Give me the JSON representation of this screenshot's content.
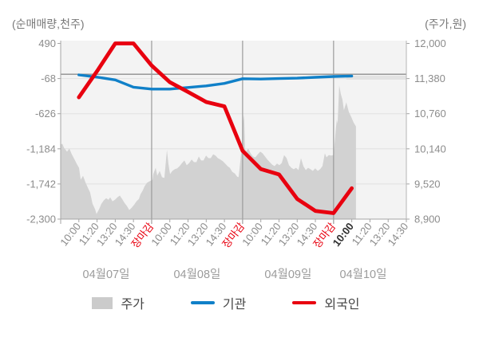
{
  "axes": {
    "left_title": "(순매매량,천주)",
    "right_title": "(주가,원)"
  },
  "legend": [
    {
      "label": "주가",
      "type": "area",
      "color": "#cbcbcb"
    },
    {
      "label": "기관",
      "type": "line",
      "color": "#1080c8"
    },
    {
      "label": "외국인",
      "type": "line",
      "color": "#e8000f"
    }
  ],
  "chart_data": {
    "type": "mixed",
    "title": "",
    "left_axis": {
      "title": "(순매매량,천주)",
      "ticks": [
        490,
        -68,
        -626,
        -1184,
        -1742,
        -2300
      ],
      "labels": [
        "490",
        "-68",
        "-626",
        "-1,184",
        "-1,742",
        "-2,300"
      ],
      "range": [
        -2300,
        490
      ]
    },
    "right_axis": {
      "title": "(주가,원)",
      "ticks": [
        12000,
        11380,
        10760,
        10140,
        9520,
        8900
      ],
      "labels": [
        "12,000",
        "11,380",
        "10,760",
        "10,140",
        "9,520",
        "8,900"
      ],
      "range": [
        8900,
        12000
      ]
    },
    "x_axis": {
      "ticks": [
        {
          "label": "10:00",
          "style": "normal"
        },
        {
          "label": "11:20",
          "style": "normal"
        },
        {
          "label": "13:20",
          "style": "normal"
        },
        {
          "label": "14:30",
          "style": "normal"
        },
        {
          "label": "장마감",
          "style": "close"
        },
        {
          "label": "10:00",
          "style": "normal"
        },
        {
          "label": "11:20",
          "style": "normal"
        },
        {
          "label": "13:20",
          "style": "normal"
        },
        {
          "label": "14:30",
          "style": "normal"
        },
        {
          "label": "장마감",
          "style": "close"
        },
        {
          "label": "10:00",
          "style": "normal"
        },
        {
          "label": "11:20",
          "style": "normal"
        },
        {
          "label": "13:20",
          "style": "normal"
        },
        {
          "label": "14:30",
          "style": "normal"
        },
        {
          "label": "장마감",
          "style": "close"
        },
        {
          "label": "10:00",
          "style": "current"
        },
        {
          "label": "11:20",
          "style": "normal"
        },
        {
          "label": "13:20",
          "style": "normal"
        },
        {
          "label": "14:30",
          "style": "normal"
        }
      ],
      "dates": [
        "04월07일",
        "04월08일",
        "04월09일",
        "04월10일"
      ]
    },
    "colors": {
      "close_label": "#e8000f",
      "current_label": "#2f2f2f",
      "tick_label": "#8c8c8c",
      "date_label": "#9b9b9b",
      "grid": "#e2e2e2",
      "day_separator": "#9b9b9b",
      "zero_line": "#8e8e8e",
      "plot_bg": "#f3f3f3"
    },
    "reference_line": {
      "axis": "left",
      "value": 0
    },
    "last_price_line": {
      "axis": "right",
      "value": 11395
    },
    "series": [
      {
        "id": "price-area",
        "name": "주가",
        "type": "area",
        "axis": "right",
        "color": "#d2d2d2",
        "points": [
          [
            0,
            10215
          ],
          [
            0.09,
            10230
          ],
          [
            0.18,
            10160
          ],
          [
            0.35,
            10090
          ],
          [
            0.48,
            10145
          ],
          [
            0.61,
            10045
          ],
          [
            0.75,
            9960
          ],
          [
            0.88,
            9875
          ],
          [
            1.01,
            9805
          ],
          [
            1.1,
            9595
          ],
          [
            1.23,
            9665
          ],
          [
            1.36,
            9550
          ],
          [
            1.49,
            9455
          ],
          [
            1.62,
            9370
          ],
          [
            1.75,
            9170
          ],
          [
            1.89,
            9075
          ],
          [
            1.97,
            8990
          ],
          [
            2.11,
            9075
          ],
          [
            2.24,
            9170
          ],
          [
            2.37,
            9230
          ],
          [
            2.5,
            9270
          ],
          [
            2.63,
            9240
          ],
          [
            2.72,
            9285
          ],
          [
            2.85,
            9215
          ],
          [
            2.98,
            9240
          ],
          [
            3.12,
            9285
          ],
          [
            3.25,
            9315
          ],
          [
            3.38,
            9255
          ],
          [
            3.51,
            9185
          ],
          [
            3.64,
            9130
          ],
          [
            3.77,
            9060
          ],
          [
            3.9,
            9100
          ],
          [
            4.04,
            9155
          ],
          [
            4.17,
            9215
          ],
          [
            4.3,
            9255
          ],
          [
            4.39,
            9340
          ],
          [
            4.52,
            9410
          ],
          [
            4.61,
            9480
          ],
          [
            4.74,
            9540
          ],
          [
            4.87,
            9565
          ],
          [
            4.96,
            9580
          ],
          [
            5.05,
            9595
          ],
          [
            5.09,
            9695
          ],
          [
            5.22,
            9805
          ],
          [
            5.31,
            9665
          ],
          [
            5.44,
            9750
          ],
          [
            5.57,
            9640
          ],
          [
            5.7,
            9625
          ],
          [
            5.79,
            9950
          ],
          [
            5.84,
            10120
          ],
          [
            5.92,
            9880
          ],
          [
            6.01,
            9695
          ],
          [
            6.14,
            9750
          ],
          [
            6.27,
            9780
          ],
          [
            6.41,
            9795
          ],
          [
            6.54,
            9835
          ],
          [
            6.67,
            9890
          ],
          [
            6.8,
            9935
          ],
          [
            6.93,
            9850
          ],
          [
            7.06,
            9890
          ],
          [
            7.2,
            9950
          ],
          [
            7.33,
            9905
          ],
          [
            7.46,
            9905
          ],
          [
            7.59,
            10005
          ],
          [
            7.72,
            9935
          ],
          [
            7.85,
            9935
          ],
          [
            7.99,
            10020
          ],
          [
            8.12,
            9975
          ],
          [
            8.25,
            9975
          ],
          [
            8.38,
            10045
          ],
          [
            8.51,
            10020
          ],
          [
            8.64,
            9975
          ],
          [
            8.78,
            9950
          ],
          [
            8.91,
            9920
          ],
          [
            9.04,
            9880
          ],
          [
            9.17,
            9835
          ],
          [
            9.3,
            9805
          ],
          [
            9.43,
            9735
          ],
          [
            9.57,
            9705
          ],
          [
            9.7,
            9650
          ],
          [
            9.78,
            9640
          ],
          [
            9.87,
            9905
          ],
          [
            9.96,
            10190
          ],
          [
            10.05,
            10740
          ],
          [
            10.09,
            10655
          ],
          [
            10.13,
            10160
          ],
          [
            10.18,
            10090
          ],
          [
            10.31,
            10145
          ],
          [
            10.44,
            10060
          ],
          [
            10.57,
            10005
          ],
          [
            10.7,
            9990
          ],
          [
            10.84,
            10045
          ],
          [
            10.97,
            10090
          ],
          [
            11.1,
            10060
          ],
          [
            11.23,
            10005
          ],
          [
            11.36,
            9950
          ],
          [
            11.49,
            9905
          ],
          [
            11.63,
            9860
          ],
          [
            11.76,
            9835
          ],
          [
            11.89,
            9880
          ],
          [
            12.02,
            9850
          ],
          [
            12.15,
            9890
          ],
          [
            12.28,
            10030
          ],
          [
            12.42,
            9975
          ],
          [
            12.55,
            9850
          ],
          [
            12.68,
            9805
          ],
          [
            12.81,
            9780
          ],
          [
            12.94,
            9805
          ],
          [
            13.07,
            9765
          ],
          [
            13.21,
            9975
          ],
          [
            13.34,
            9835
          ],
          [
            13.47,
            9765
          ],
          [
            13.6,
            9805
          ],
          [
            13.73,
            9780
          ],
          [
            13.86,
            9750
          ],
          [
            13.99,
            9795
          ],
          [
            14.13,
            9750
          ],
          [
            14.26,
            9780
          ],
          [
            14.39,
            9835
          ],
          [
            14.52,
            10060
          ],
          [
            14.61,
            9990
          ],
          [
            14.74,
            10030
          ],
          [
            14.87,
            10020
          ],
          [
            15,
            10030
          ],
          [
            15.13,
            10510
          ],
          [
            15.18,
            10655
          ],
          [
            15.22,
            10585
          ],
          [
            15.31,
            11260
          ],
          [
            15.4,
            11105
          ],
          [
            15.49,
            11005
          ],
          [
            15.57,
            10820
          ],
          [
            15.7,
            10960
          ],
          [
            15.84,
            10790
          ],
          [
            15.97,
            10705
          ],
          [
            16.1,
            10605
          ],
          [
            16.23,
            10535
          ]
        ]
      },
      {
        "id": "institution-line",
        "name": "기관",
        "type": "line",
        "axis": "left",
        "color": "#1080c8",
        "width": 3.4,
        "values": [
          [
            1,
            -10
          ],
          [
            2,
            -45
          ],
          [
            3,
            -90
          ],
          [
            4,
            -205
          ],
          [
            5,
            -235
          ],
          [
            6,
            -235
          ],
          [
            7,
            -210
          ],
          [
            8,
            -185
          ],
          [
            9,
            -145
          ],
          [
            10,
            -70
          ],
          [
            11,
            -75
          ],
          [
            12,
            -68
          ],
          [
            13,
            -62
          ],
          [
            14,
            -48
          ],
          [
            15,
            -35
          ],
          [
            16,
            -28
          ]
        ]
      },
      {
        "id": "foreigner-line",
        "name": "외국인",
        "type": "line",
        "axis": "left",
        "color": "#e8000f",
        "width": 4.8,
        "values": [
          [
            1,
            -365
          ],
          [
            2,
            50
          ],
          [
            3,
            490
          ],
          [
            4,
            490
          ],
          [
            5,
            140
          ],
          [
            6,
            -125
          ],
          [
            7,
            -280
          ],
          [
            8,
            -440
          ],
          [
            9,
            -510
          ],
          [
            10,
            -1215
          ],
          [
            11,
            -1505
          ],
          [
            12,
            -1590
          ],
          [
            13,
            -1980
          ],
          [
            14,
            -2170
          ],
          [
            15,
            -2205
          ],
          [
            16,
            -1810
          ]
        ]
      }
    ]
  }
}
